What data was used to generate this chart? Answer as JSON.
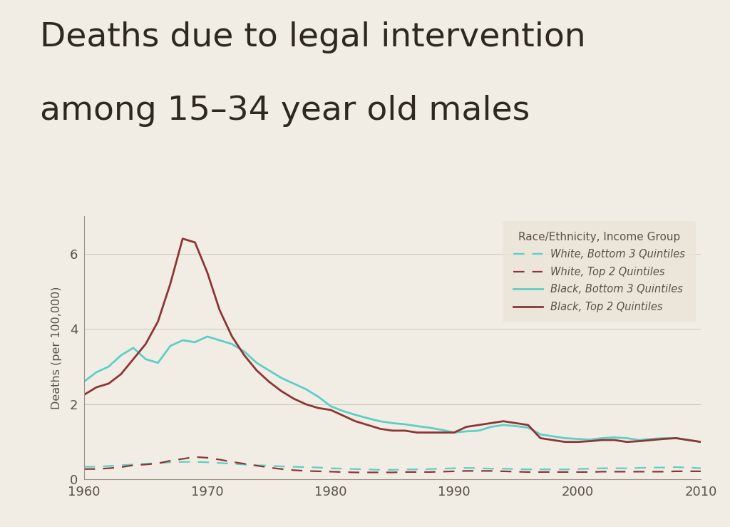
{
  "title_line1": "Deaths due to legal intervention",
  "title_line2": "among 15–34 year old males",
  "ylabel": "Deaths (per 100,000)",
  "background_color": "#f2ede4",
  "plot_bg_color": "#f2ede4",
  "legend_bg_color": "#eae4d8",
  "title_color": "#2e2820",
  "text_color": "#5a5248",
  "axis_color": "#9a9088",
  "separator_color": "#b8b0a4",
  "legend_title": "Race/Ethnicity, Income Group",
  "years": [
    1960,
    1961,
    1962,
    1963,
    1964,
    1965,
    1966,
    1967,
    1968,
    1969,
    1970,
    1971,
    1972,
    1973,
    1974,
    1975,
    1976,
    1977,
    1978,
    1979,
    1980,
    1981,
    1982,
    1983,
    1984,
    1985,
    1986,
    1987,
    1988,
    1989,
    1990,
    1991,
    1992,
    1993,
    1994,
    1995,
    1996,
    1997,
    1998,
    1999,
    2000,
    2001,
    2002,
    2003,
    2004,
    2005,
    2006,
    2007,
    2008,
    2009,
    2010
  ],
  "white_bottom3": [
    0.34,
    0.34,
    0.36,
    0.38,
    0.4,
    0.42,
    0.44,
    0.46,
    0.47,
    0.47,
    0.46,
    0.44,
    0.42,
    0.4,
    0.38,
    0.37,
    0.35,
    0.34,
    0.33,
    0.32,
    0.3,
    0.29,
    0.28,
    0.27,
    0.26,
    0.26,
    0.27,
    0.27,
    0.28,
    0.29,
    0.3,
    0.31,
    0.3,
    0.29,
    0.29,
    0.28,
    0.27,
    0.27,
    0.27,
    0.27,
    0.28,
    0.29,
    0.3,
    0.3,
    0.3,
    0.31,
    0.32,
    0.32,
    0.33,
    0.32,
    0.3
  ],
  "white_top2": [
    0.28,
    0.28,
    0.3,
    0.33,
    0.38,
    0.4,
    0.43,
    0.5,
    0.55,
    0.6,
    0.58,
    0.53,
    0.47,
    0.42,
    0.37,
    0.32,
    0.28,
    0.25,
    0.23,
    0.22,
    0.21,
    0.2,
    0.19,
    0.19,
    0.19,
    0.19,
    0.2,
    0.2,
    0.2,
    0.21,
    0.22,
    0.23,
    0.23,
    0.23,
    0.22,
    0.21,
    0.2,
    0.2,
    0.2,
    0.2,
    0.2,
    0.2,
    0.21,
    0.21,
    0.21,
    0.21,
    0.21,
    0.21,
    0.22,
    0.22,
    0.22
  ],
  "black_bottom3": [
    2.6,
    2.85,
    3.0,
    3.3,
    3.5,
    3.2,
    3.1,
    3.55,
    3.7,
    3.65,
    3.8,
    3.7,
    3.6,
    3.4,
    3.1,
    2.9,
    2.7,
    2.55,
    2.4,
    2.2,
    1.95,
    1.82,
    1.72,
    1.63,
    1.55,
    1.5,
    1.47,
    1.42,
    1.38,
    1.32,
    1.25,
    1.28,
    1.3,
    1.4,
    1.45,
    1.42,
    1.38,
    1.2,
    1.15,
    1.1,
    1.08,
    1.06,
    1.1,
    1.12,
    1.1,
    1.05,
    1.08,
    1.1,
    1.1,
    1.05,
    1.0
  ],
  "black_top2": [
    2.25,
    2.45,
    2.55,
    2.8,
    3.2,
    3.6,
    4.2,
    5.2,
    6.4,
    6.3,
    5.5,
    4.5,
    3.8,
    3.3,
    2.9,
    2.6,
    2.35,
    2.15,
    2.0,
    1.9,
    1.85,
    1.7,
    1.55,
    1.45,
    1.35,
    1.3,
    1.3,
    1.25,
    1.25,
    1.25,
    1.25,
    1.4,
    1.45,
    1.5,
    1.55,
    1.5,
    1.45,
    1.1,
    1.05,
    1.0,
    1.0,
    1.02,
    1.05,
    1.05,
    1.0,
    1.02,
    1.05,
    1.08,
    1.1,
    1.05,
    1.0
  ],
  "color_cyan": "#5dcfc5",
  "color_dark_red": "#8b3535",
  "ylim": [
    0,
    7.0
  ],
  "yticks": [
    0,
    2,
    4,
    6
  ],
  "xticks": [
    1960,
    1970,
    1980,
    1990,
    2000,
    2010
  ]
}
